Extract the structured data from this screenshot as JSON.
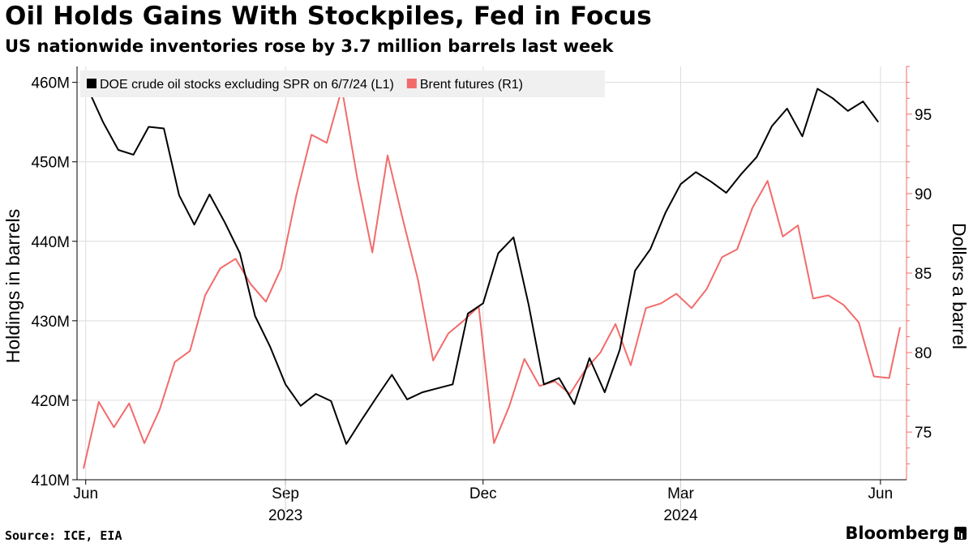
{
  "title": "Oil Holds Gains With Stockpiles, Fed in Focus",
  "subtitle": "US nationwide inventories rose by 3.7 million barrels last week",
  "source": "Source: ICE, EIA",
  "brand": "Bloomberg",
  "chart_data": {
    "type": "line",
    "title": "Oil Holds Gains With Stockpiles, Fed in Focus",
    "subtitle": "US nationwide inventories rose by 3.7 million barrels last week",
    "x_ticks": [
      "Jun",
      "Sep",
      "Dec",
      "Mar",
      "Jun"
    ],
    "x_year_labels": [
      "2023",
      "2024"
    ],
    "y_left": {
      "label": "Holdings in barrels",
      "ticks": [
        "410M",
        "420M",
        "430M",
        "440M",
        "450M",
        "460M"
      ],
      "tick_values": [
        410,
        420,
        430,
        440,
        450,
        460
      ],
      "range": [
        410,
        462
      ]
    },
    "y_right": {
      "label": "Dollars a barrel",
      "ticks": [
        "75",
        "80",
        "85",
        "90",
        "95"
      ],
      "tick_values": [
        75,
        80,
        85,
        90,
        95
      ],
      "range": [
        72,
        98
      ]
    },
    "grid": true,
    "legend_position": "top-left",
    "colors": {
      "crude": "#000000",
      "brent": "#f26b6b",
      "axis_right": "#f26b6b"
    },
    "series": [
      {
        "name": "DOE crude oil stocks excluding SPR on 6/7/24 (L1)",
        "axis": "left",
        "color": "#000000",
        "x": [
          "2023-06-02",
          "2023-06-09",
          "2023-06-16",
          "2023-06-23",
          "2023-06-30",
          "2023-07-07",
          "2023-07-14",
          "2023-07-21",
          "2023-07-28",
          "2023-08-04",
          "2023-08-11",
          "2023-08-18",
          "2023-08-25",
          "2023-09-01",
          "2023-09-08",
          "2023-09-15",
          "2023-09-22",
          "2023-09-29",
          "2023-10-06",
          "2023-10-13",
          "2023-10-20",
          "2023-10-27",
          "2023-11-03",
          "2023-11-10",
          "2023-11-17",
          "2023-11-24",
          "2023-12-01",
          "2023-12-08",
          "2023-12-15",
          "2023-12-22",
          "2023-12-29",
          "2024-01-05",
          "2024-01-12",
          "2024-01-19",
          "2024-01-26",
          "2024-02-02",
          "2024-02-09",
          "2024-02-16",
          "2024-02-23",
          "2024-03-01",
          "2024-03-08",
          "2024-03-15",
          "2024-03-22",
          "2024-03-29",
          "2024-04-05",
          "2024-04-12",
          "2024-04-19",
          "2024-04-26",
          "2024-05-03",
          "2024-05-10",
          "2024-05-17",
          "2024-05-24",
          "2024-05-31"
        ],
        "y": [
          459.2,
          455.0,
          451.5,
          450.9,
          454.4,
          454.2,
          445.8,
          442.1,
          445.9,
          442.4,
          438.5,
          430.6,
          426.7,
          422.0,
          419.3,
          420.8,
          419.9,
          414.5,
          417.5,
          420.4,
          423.2,
          420.1,
          421.0,
          421.5,
          422.0,
          430.9,
          432.2,
          438.5,
          440.5,
          432.0,
          422.0,
          422.8,
          419.5,
          425.3,
          421.0,
          426.4,
          436.3,
          439.0,
          443.6,
          447.2,
          448.7,
          447.5,
          446.1,
          448.5,
          450.6,
          454.5,
          456.7,
          453.2,
          459.2,
          458.0,
          456.4,
          457.6,
          455.0
        ]
      },
      {
        "name": "Brent futures (R1)",
        "axis": "right",
        "color": "#f26b6b",
        "x": [
          "2023-05-31",
          "2023-06-07",
          "2023-06-14",
          "2023-06-21",
          "2023-06-28",
          "2023-07-05",
          "2023-07-12",
          "2023-07-19",
          "2023-07-26",
          "2023-08-02",
          "2023-08-09",
          "2023-08-16",
          "2023-08-23",
          "2023-08-30",
          "2023-09-06",
          "2023-09-13",
          "2023-09-20",
          "2023-09-27",
          "2023-10-04",
          "2023-10-11",
          "2023-10-18",
          "2023-10-25",
          "2023-11-01",
          "2023-11-08",
          "2023-11-15",
          "2023-11-22",
          "2023-11-29",
          "2023-12-06",
          "2023-12-13",
          "2023-12-20",
          "2023-12-27",
          "2024-01-03",
          "2024-01-10",
          "2024-01-17",
          "2024-01-24",
          "2024-01-31",
          "2024-02-07",
          "2024-02-14",
          "2024-02-21",
          "2024-02-28",
          "2024-03-06",
          "2024-03-13",
          "2024-03-20",
          "2024-03-27",
          "2024-04-03",
          "2024-04-10",
          "2024-04-17",
          "2024-04-24",
          "2024-05-01",
          "2024-05-08",
          "2024-05-15",
          "2024-05-22",
          "2024-05-29",
          "2024-06-05",
          "2024-06-10"
        ],
        "y": [
          72.7,
          76.9,
          75.3,
          76.8,
          74.3,
          76.4,
          79.4,
          80.1,
          83.6,
          85.3,
          85.9,
          84.3,
          83.2,
          85.3,
          89.9,
          93.7,
          93.2,
          96.6,
          91.0,
          86.3,
          92.4,
          88.4,
          84.6,
          79.5,
          81.2,
          82.0,
          82.9,
          74.3,
          76.6,
          79.6,
          77.9,
          78.2,
          77.4,
          78.9,
          80.0,
          81.8,
          79.2,
          82.8,
          83.1,
          83.7,
          82.8,
          84.0,
          86.0,
          86.5,
          89.1,
          90.8,
          87.3,
          88.0,
          83.4,
          83.6,
          83.0,
          81.9,
          78.5,
          78.4,
          81.6
        ]
      }
    ]
  }
}
